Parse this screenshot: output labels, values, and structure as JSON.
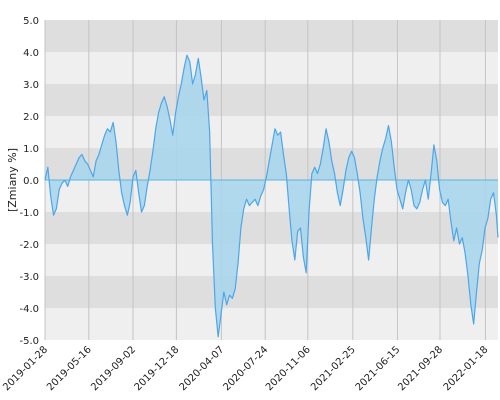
{
  "chart_data": {
    "type": "area",
    "ylabel": "[Zmiany %]",
    "ylim": [
      -5.0,
      5.0
    ],
    "y_ticks": [
      5.0,
      4.0,
      3.0,
      2.0,
      1.0,
      0.0,
      -1.0,
      -2.0,
      -3.0,
      -4.0,
      -5.0
    ],
    "y_tick_labels": [
      "5.0",
      "4.0",
      "3.0",
      "2.0",
      "1.0",
      "0.0",
      "-1.0",
      "-2.0",
      "-3.0",
      "-4.0",
      "-5.0"
    ],
    "x_start": "2019-01-28",
    "x_end": "2022-02-18",
    "x_ticks": [
      "2019-01-28",
      "2019-05-16",
      "2019-09-02",
      "2019-12-18",
      "2020-04-07",
      "2020-07-24",
      "2020-11-06",
      "2021-02-25",
      "2021-06-15",
      "2021-09-28",
      "2022-01-18"
    ],
    "grid": true,
    "legend": "none",
    "colors": {
      "line": "#4da6e8",
      "fill": "#aad6ec",
      "band_dark": "#dedede",
      "band_light": "#efefef",
      "zero_line": "#5ab4e0",
      "vertical_grid": "#c4c4c4"
    },
    "series": [
      {
        "points": [
          [
            "2019-01-28",
            0.0
          ],
          [
            "2019-02-04",
            0.4
          ],
          [
            "2019-02-11",
            -0.5
          ],
          [
            "2019-02-18",
            -1.1
          ],
          [
            "2019-02-25",
            -0.9
          ],
          [
            "2019-03-04",
            -0.3
          ],
          [
            "2019-03-11",
            -0.1
          ],
          [
            "2019-03-18",
            0.0
          ],
          [
            "2019-03-25",
            -0.2
          ],
          [
            "2019-04-01",
            0.1
          ],
          [
            "2019-04-08",
            0.3
          ],
          [
            "2019-04-15",
            0.5
          ],
          [
            "2019-04-22",
            0.7
          ],
          [
            "2019-04-29",
            0.8
          ],
          [
            "2019-05-06",
            0.6
          ],
          [
            "2019-05-13",
            0.5
          ],
          [
            "2019-05-20",
            0.3
          ],
          [
            "2019-05-27",
            0.1
          ],
          [
            "2019-06-03",
            0.6
          ],
          [
            "2019-06-10",
            0.8
          ],
          [
            "2019-06-17",
            1.1
          ],
          [
            "2019-06-24",
            1.4
          ],
          [
            "2019-07-01",
            1.6
          ],
          [
            "2019-07-08",
            1.5
          ],
          [
            "2019-07-15",
            1.8
          ],
          [
            "2019-07-22",
            1.2
          ],
          [
            "2019-07-29",
            0.3
          ],
          [
            "2019-08-05",
            -0.4
          ],
          [
            "2019-08-12",
            -0.8
          ],
          [
            "2019-08-19",
            -1.1
          ],
          [
            "2019-08-26",
            -0.7
          ],
          [
            "2019-09-02",
            0.1
          ],
          [
            "2019-09-09",
            0.3
          ],
          [
            "2019-09-16",
            -0.4
          ],
          [
            "2019-09-23",
            -1.0
          ],
          [
            "2019-09-30",
            -0.8
          ],
          [
            "2019-10-07",
            -0.2
          ],
          [
            "2019-10-14",
            0.3
          ],
          [
            "2019-10-21",
            0.9
          ],
          [
            "2019-10-28",
            1.6
          ],
          [
            "2019-11-04",
            2.1
          ],
          [
            "2019-11-11",
            2.4
          ],
          [
            "2019-11-18",
            2.6
          ],
          [
            "2019-11-25",
            2.3
          ],
          [
            "2019-12-02",
            1.9
          ],
          [
            "2019-12-09",
            1.4
          ],
          [
            "2019-12-16",
            2.1
          ],
          [
            "2019-12-23",
            2.6
          ],
          [
            "2019-12-30",
            3.0
          ],
          [
            "2020-01-06",
            3.5
          ],
          [
            "2020-01-13",
            3.9
          ],
          [
            "2020-01-20",
            3.7
          ],
          [
            "2020-01-27",
            3.0
          ],
          [
            "2020-02-03",
            3.3
          ],
          [
            "2020-02-10",
            3.8
          ],
          [
            "2020-02-17",
            3.2
          ],
          [
            "2020-02-24",
            2.5
          ],
          [
            "2020-03-02",
            2.8
          ],
          [
            "2020-03-09",
            1.5
          ],
          [
            "2020-03-16",
            -2.0
          ],
          [
            "2020-03-23",
            -4.0
          ],
          [
            "2020-03-30",
            -4.9
          ],
          [
            "2020-04-06",
            -4.2
          ],
          [
            "2020-04-13",
            -3.5
          ],
          [
            "2020-04-20",
            -3.9
          ],
          [
            "2020-04-27",
            -3.6
          ],
          [
            "2020-05-04",
            -3.7
          ],
          [
            "2020-05-11",
            -3.4
          ],
          [
            "2020-05-18",
            -2.6
          ],
          [
            "2020-05-25",
            -1.5
          ],
          [
            "2020-06-01",
            -0.9
          ],
          [
            "2020-06-08",
            -0.6
          ],
          [
            "2020-06-15",
            -0.8
          ],
          [
            "2020-06-22",
            -0.7
          ],
          [
            "2020-06-29",
            -0.6
          ],
          [
            "2020-07-06",
            -0.8
          ],
          [
            "2020-07-13",
            -0.5
          ],
          [
            "2020-07-20",
            -0.3
          ],
          [
            "2020-07-27",
            0.1
          ],
          [
            "2020-08-03",
            0.6
          ],
          [
            "2020-08-10",
            1.1
          ],
          [
            "2020-08-17",
            1.6
          ],
          [
            "2020-08-24",
            1.4
          ],
          [
            "2020-08-31",
            1.5
          ],
          [
            "2020-09-07",
            0.8
          ],
          [
            "2020-09-14",
            0.2
          ],
          [
            "2020-09-21",
            -0.9
          ],
          [
            "2020-09-28",
            -1.9
          ],
          [
            "2020-10-05",
            -2.5
          ],
          [
            "2020-10-12",
            -1.6
          ],
          [
            "2020-10-19",
            -1.5
          ],
          [
            "2020-10-26",
            -2.4
          ],
          [
            "2020-11-02",
            -2.9
          ],
          [
            "2020-11-09",
            -1.0
          ],
          [
            "2020-11-16",
            0.2
          ],
          [
            "2020-11-23",
            0.4
          ],
          [
            "2020-11-30",
            0.2
          ],
          [
            "2020-12-07",
            0.5
          ],
          [
            "2020-12-14",
            1.0
          ],
          [
            "2020-12-21",
            1.6
          ],
          [
            "2020-12-28",
            1.2
          ],
          [
            "2021-01-04",
            0.6
          ],
          [
            "2021-01-11",
            0.2
          ],
          [
            "2021-01-18",
            -0.4
          ],
          [
            "2021-01-25",
            -0.8
          ],
          [
            "2021-02-01",
            -0.3
          ],
          [
            "2021-02-08",
            0.3
          ],
          [
            "2021-02-15",
            0.7
          ],
          [
            "2021-02-22",
            0.9
          ],
          [
            "2021-03-01",
            0.7
          ],
          [
            "2021-03-08",
            0.2
          ],
          [
            "2021-03-15",
            -0.4
          ],
          [
            "2021-03-22",
            -1.2
          ],
          [
            "2021-03-29",
            -1.8
          ],
          [
            "2021-04-05",
            -2.5
          ],
          [
            "2021-04-12",
            -1.5
          ],
          [
            "2021-04-19",
            -0.6
          ],
          [
            "2021-04-26",
            0.1
          ],
          [
            "2021-05-03",
            0.6
          ],
          [
            "2021-05-10",
            1.0
          ],
          [
            "2021-05-17",
            1.3
          ],
          [
            "2021-05-24",
            1.7
          ],
          [
            "2021-05-31",
            1.2
          ],
          [
            "2021-06-07",
            0.4
          ],
          [
            "2021-06-14",
            -0.3
          ],
          [
            "2021-06-21",
            -0.6
          ],
          [
            "2021-06-28",
            -0.9
          ],
          [
            "2021-07-05",
            -0.4
          ],
          [
            "2021-07-12",
            0.0
          ],
          [
            "2021-07-19",
            -0.3
          ],
          [
            "2021-07-26",
            -0.8
          ],
          [
            "2021-08-02",
            -0.9
          ],
          [
            "2021-08-09",
            -0.7
          ],
          [
            "2021-08-16",
            -0.3
          ],
          [
            "2021-08-23",
            0.0
          ],
          [
            "2021-08-30",
            -0.6
          ],
          [
            "2021-09-06",
            0.2
          ],
          [
            "2021-09-13",
            1.1
          ],
          [
            "2021-09-20",
            0.6
          ],
          [
            "2021-09-27",
            -0.3
          ],
          [
            "2021-10-04",
            -0.7
          ],
          [
            "2021-10-11",
            -0.8
          ],
          [
            "2021-10-18",
            -0.6
          ],
          [
            "2021-10-25",
            -1.3
          ],
          [
            "2021-11-01",
            -1.9
          ],
          [
            "2021-11-08",
            -1.5
          ],
          [
            "2021-11-15",
            -2.0
          ],
          [
            "2021-11-22",
            -1.8
          ],
          [
            "2021-11-29",
            -2.3
          ],
          [
            "2021-12-06",
            -3.0
          ],
          [
            "2021-12-13",
            -3.9
          ],
          [
            "2021-12-20",
            -4.5
          ],
          [
            "2021-12-27",
            -3.5
          ],
          [
            "2022-01-03",
            -2.6
          ],
          [
            "2022-01-10",
            -2.2
          ],
          [
            "2022-01-17",
            -1.5
          ],
          [
            "2022-01-24",
            -1.2
          ],
          [
            "2022-01-31",
            -0.6
          ],
          [
            "2022-02-07",
            -0.4
          ],
          [
            "2022-02-14",
            -1.1
          ],
          [
            "2022-02-18",
            -1.8
          ]
        ]
      }
    ]
  }
}
